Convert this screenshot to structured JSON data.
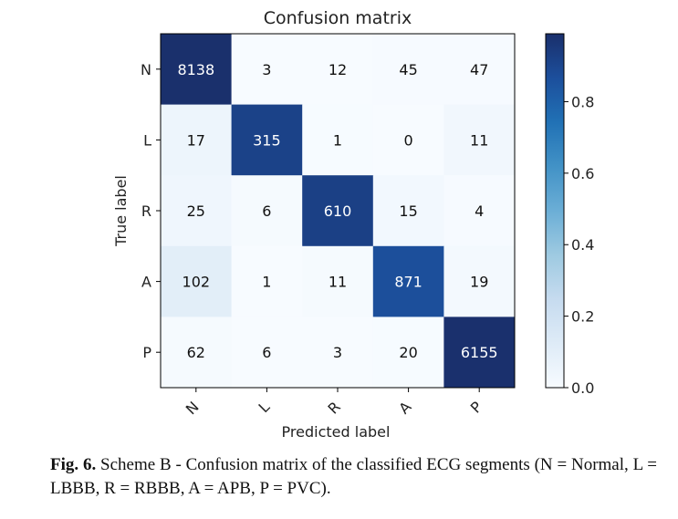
{
  "chart_data": {
    "type": "heatmap",
    "title": "Confusion matrix",
    "xlabel": "Predicted label",
    "ylabel": "True label",
    "labels": [
      "N",
      "L",
      "R",
      "A",
      "P"
    ],
    "matrix": [
      [
        8138,
        3,
        12,
        45,
        47
      ],
      [
        17,
        315,
        1,
        0,
        11
      ],
      [
        25,
        6,
        610,
        15,
        4
      ],
      [
        102,
        1,
        11,
        871,
        19
      ],
      [
        62,
        6,
        3,
        20,
        6155
      ]
    ],
    "colorbar": {
      "ticks": [
        "0.0",
        "0.2",
        "0.4",
        "0.6",
        "0.8"
      ],
      "tick_values": [
        0.0,
        0.2,
        0.4,
        0.6,
        0.8
      ],
      "range": [
        0.0,
        0.99
      ]
    },
    "colormap": [
      "#f7fbff",
      "#deebf7",
      "#c6dbef",
      "#9ecae1",
      "#6baed6",
      "#4292c6",
      "#2171b5",
      "#1c4f9c",
      "#1a2f6b"
    ]
  },
  "caption": {
    "label": "Fig. 6.",
    "text": "Scheme B - Confusion matrix of the classified ECG segments (N = Normal, L = LBBB, R = RBBB, A = APB, P = PVC)."
  }
}
